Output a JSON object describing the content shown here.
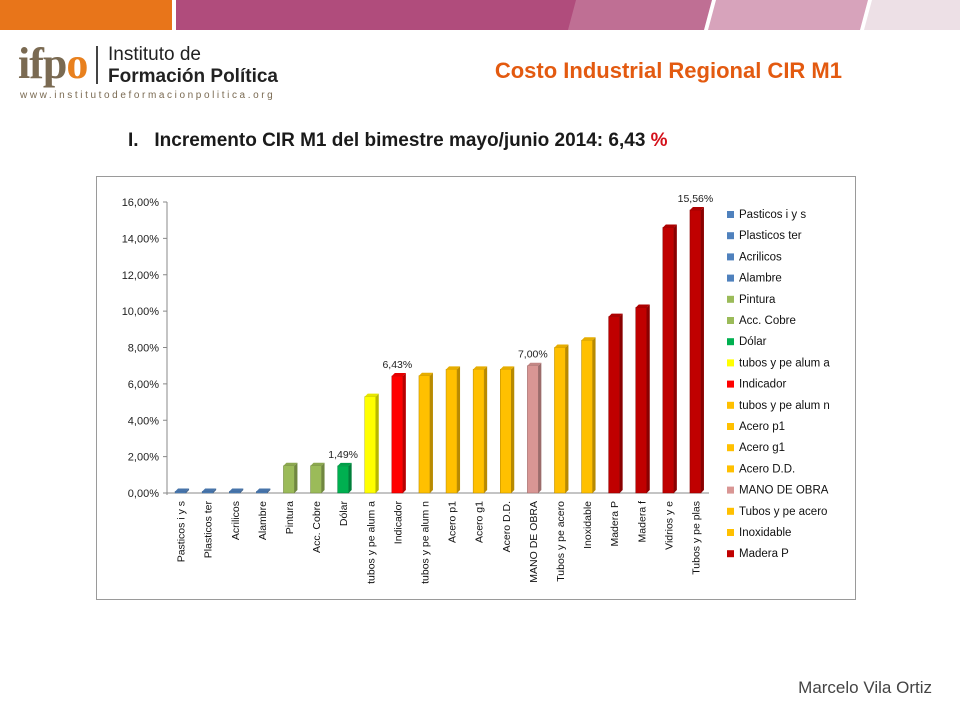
{
  "header": {
    "logo_mark": "ifpo",
    "logo_line1": "Instituto de",
    "logo_line2": "Formación Política",
    "logo_url": "www.institutodeformacionpolitica.org",
    "page_title": "Costo Industrial Regional CIR M1"
  },
  "subtitle": {
    "text": "I.   Incremento CIR M1 del bimestre mayo/junio 2014: 6,43 ",
    "percent_sign": "%"
  },
  "footer": {
    "author": "Marcelo Vila Ortiz"
  },
  "colors": {
    "title": "#e35a10",
    "blue": "#4f81bd",
    "green": "#9bbb59",
    "dark_green": "#00b050",
    "yellow": "#ffff00",
    "red": "#ff0000",
    "orange": "#ffc000",
    "pink": "#d99694",
    "dark_red": "#c00000"
  },
  "chart_data": {
    "type": "bar",
    "ylim": [
      0,
      16
    ],
    "yticks": [
      0,
      2,
      4,
      6,
      8,
      10,
      12,
      14,
      16
    ],
    "ytick_labels": [
      "0,00%",
      "2,00%",
      "4,00%",
      "6,00%",
      "8,00%",
      "10,00%",
      "12,00%",
      "14,00%",
      "16,00%"
    ],
    "grid": false,
    "legend_position": "right",
    "categories": [
      "Pasticos i y s",
      "Plasticos ter",
      "Acrilicos",
      "Alambre",
      "Pintura",
      "Acc. Cobre",
      "Dólar",
      "tubos y pe alum a",
      "Indicador",
      "tubos y pe alum n",
      "Acero p1",
      "Acero g1",
      "Acero D.D.",
      "MANO DE OBRA",
      "Tubos y pe acero",
      "Inoxidable",
      "Madera P",
      "Madera f",
      "Vidrios y e",
      "Tubos y pe plas"
    ],
    "values": [
      0.05,
      0.05,
      0.05,
      0.05,
      1.5,
      1.5,
      1.49,
      5.3,
      6.43,
      6.45,
      6.8,
      6.8,
      6.8,
      7.0,
      8.0,
      8.4,
      9.7,
      10.2,
      14.6,
      15.56
    ],
    "bar_colors": [
      "#4f81bd",
      "#4f81bd",
      "#4f81bd",
      "#4f81bd",
      "#9bbb59",
      "#9bbb59",
      "#00b050",
      "#ffff00",
      "#ff0000",
      "#ffc000",
      "#ffc000",
      "#ffc000",
      "#ffc000",
      "#d99694",
      "#ffc000",
      "#ffc000",
      "#c00000",
      "#c00000",
      "#c00000",
      "#c00000"
    ],
    "data_labels": [
      {
        "index": 6,
        "text": "1,49%"
      },
      {
        "index": 8,
        "text": "6,43%"
      },
      {
        "index": 13,
        "text": "7,00%"
      },
      {
        "index": 19,
        "text": "15,56%"
      }
    ],
    "legend": [
      {
        "label": "Pasticos i y s",
        "color": "#4f81bd"
      },
      {
        "label": "Plasticos ter",
        "color": "#4f81bd"
      },
      {
        "label": "Acrilicos",
        "color": "#4f81bd"
      },
      {
        "label": "Alambre",
        "color": "#4f81bd"
      },
      {
        "label": "Pintura",
        "color": "#9bbb59"
      },
      {
        "label": "Acc. Cobre",
        "color": "#9bbb59"
      },
      {
        "label": "Dólar",
        "color": "#00b050"
      },
      {
        "label": "tubos y pe alum a",
        "color": "#ffff00"
      },
      {
        "label": "Indicador",
        "color": "#ff0000"
      },
      {
        "label": "tubos y pe alum n",
        "color": "#ffc000"
      },
      {
        "label": "Acero p1",
        "color": "#ffc000"
      },
      {
        "label": "Acero g1",
        "color": "#ffc000"
      },
      {
        "label": "Acero D.D.",
        "color": "#ffc000"
      },
      {
        "label": "MANO DE OBRA",
        "color": "#d99694"
      },
      {
        "label": "Tubos y pe acero",
        "color": "#ffc000"
      },
      {
        "label": "Inoxidable",
        "color": "#ffc000"
      },
      {
        "label": "Madera P",
        "color": "#c00000"
      }
    ]
  }
}
